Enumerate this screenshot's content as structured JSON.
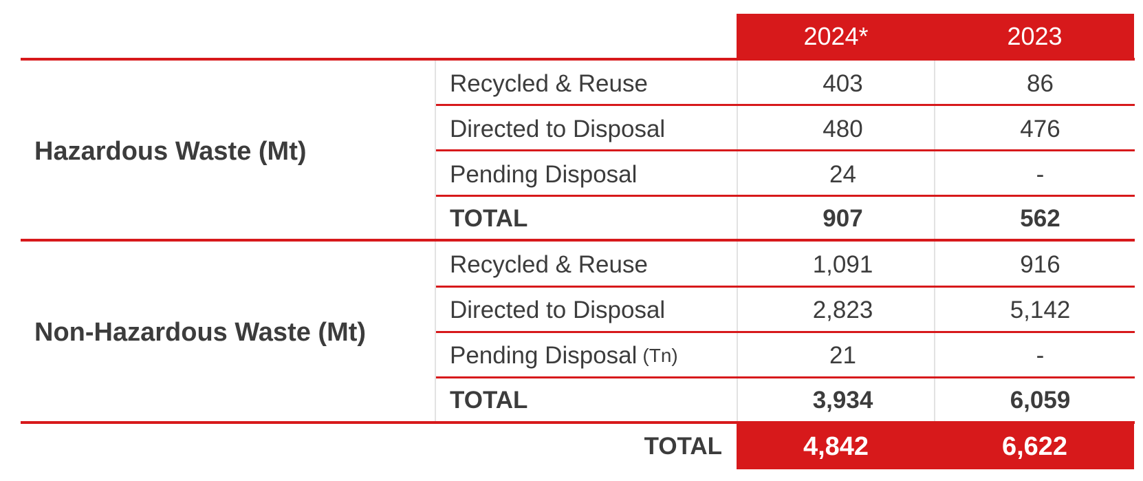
{
  "columns": [
    "2024*",
    "2023"
  ],
  "groups": [
    {
      "label": "Hazardous Waste (Mt)",
      "rows": [
        {
          "label": "Recycled & Reuse",
          "unit": "",
          "values": [
            "403",
            "86"
          ]
        },
        {
          "label": "Directed to Disposal",
          "unit": "",
          "values": [
            "480",
            "476"
          ]
        },
        {
          "label": "Pending Disposal",
          "unit": "",
          "values": [
            "24",
            "-"
          ]
        }
      ],
      "total": {
        "label": "TOTAL",
        "values": [
          "907",
          "562"
        ]
      }
    },
    {
      "label": "Non-Hazardous Waste (Mt)",
      "rows": [
        {
          "label": "Recycled & Reuse",
          "unit": "",
          "values": [
            "1,091",
            "916"
          ]
        },
        {
          "label": "Directed to Disposal",
          "unit": "",
          "values": [
            "2,823",
            "5,142"
          ]
        },
        {
          "label": "Pending Disposal",
          "unit": "(Tn)",
          "values": [
            "21",
            "-"
          ]
        }
      ],
      "total": {
        "label": "TOTAL",
        "values": [
          "3,934",
          "6,059"
        ]
      }
    }
  ],
  "grand_total": {
    "label": "TOTAL",
    "values": [
      "4,842",
      "6,622"
    ]
  },
  "colors": {
    "accent": "#d7191b",
    "text": "#3c3c3c",
    "gridline": "#e2e2e2"
  }
}
